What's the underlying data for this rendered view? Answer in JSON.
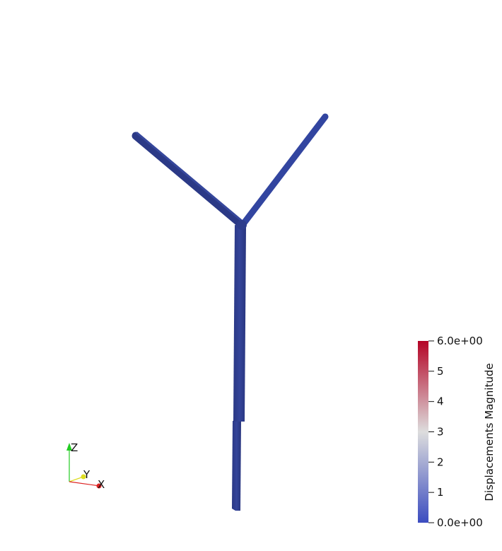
{
  "scene": {
    "background": "#ffffff",
    "geometry_color": "#2f3f90",
    "geometry_edge_color": "#26337a"
  },
  "orientation_axes": {
    "z_label": "Z",
    "y_label": "Y",
    "x_label": "X",
    "z_color": "#22cc22",
    "y_color": "#dddd22",
    "x_color": "#dd2222"
  },
  "colorbar": {
    "title": "Displacements Magnitude",
    "ticks": [
      {
        "value": 6.0,
        "label": "6.0e+00"
      },
      {
        "value": 5,
        "label": "5"
      },
      {
        "value": 4,
        "label": "4"
      },
      {
        "value": 3,
        "label": "3"
      },
      {
        "value": 2,
        "label": "2"
      },
      {
        "value": 1,
        "label": "1"
      },
      {
        "value": 0.0,
        "label": "0.0e+00"
      }
    ],
    "range": [
      0.0,
      6.0
    ],
    "color_low": "#3b4cc0",
    "color_mid": "#dddddd",
    "color_high": "#b40426"
  }
}
